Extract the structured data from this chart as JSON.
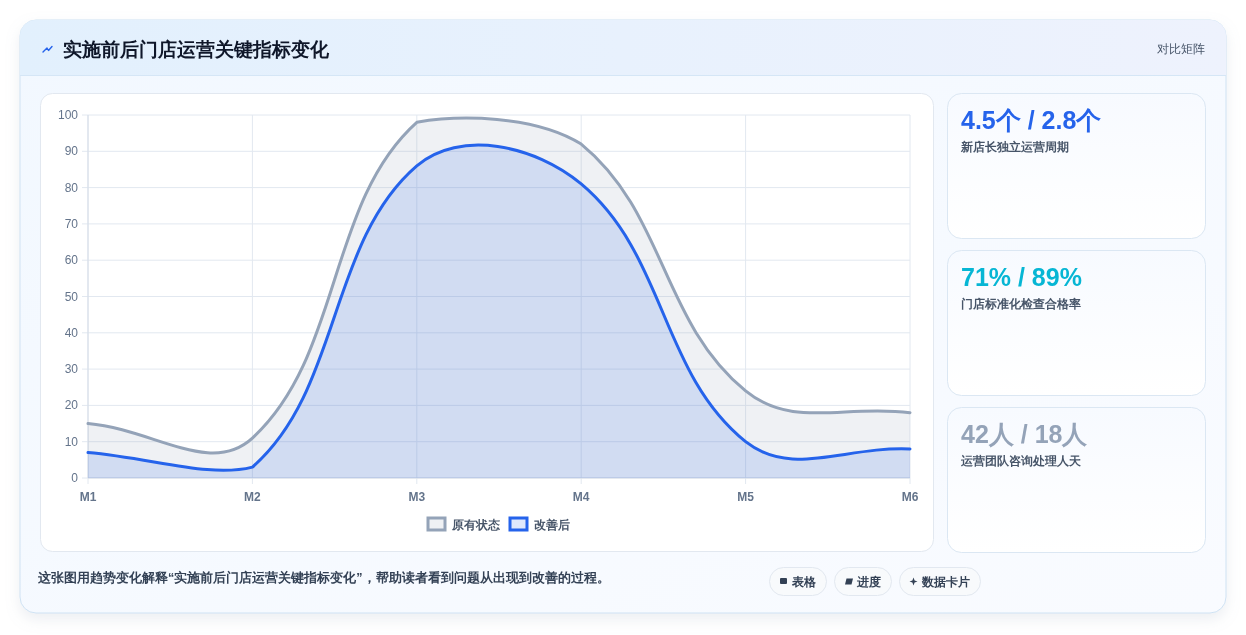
{
  "chart_data": [
    {
      "type": "area",
      "title": "实施前后门店运营关键指标变化",
      "categories": [
        "M1",
        "M2",
        "M3",
        "M4",
        "M5",
        "M6"
      ],
      "series": [
        {
          "name": "原有状态",
          "color": "#94a3b8",
          "values": [
            15,
            11,
            98,
            92,
            24,
            18
          ]
        },
        {
          "name": "改善后",
          "color": "#2563eb",
          "values": [
            7,
            3,
            86,
            81,
            10,
            8
          ]
        }
      ],
      "ylim": [
        0,
        100
      ],
      "yticks": [
        0,
        10,
        20,
        30,
        40,
        50,
        60,
        70,
        80,
        90,
        100
      ],
      "grid": true,
      "legend": "bottom",
      "annotations": [
        "对比矩阵",
        "这张图用趋势变化解释“实施前后门店运营关键指标变化”，帮助读者看到问题从出现到改善的过程。",
        "表格",
        "进度",
        "数据卡片"
      ]
    },
    {
      "type": "other",
      "title": "4.5个 / 2.8个",
      "subtitle": "新店长独立运营周期"
    },
    {
      "type": "other",
      "title": "71% / 89%",
      "subtitle": "门店标准化检查合格率"
    },
    {
      "type": "other",
      "title": "42人 / 18人",
      "subtitle": "运营团队咨询处理人天"
    }
  ]
}
